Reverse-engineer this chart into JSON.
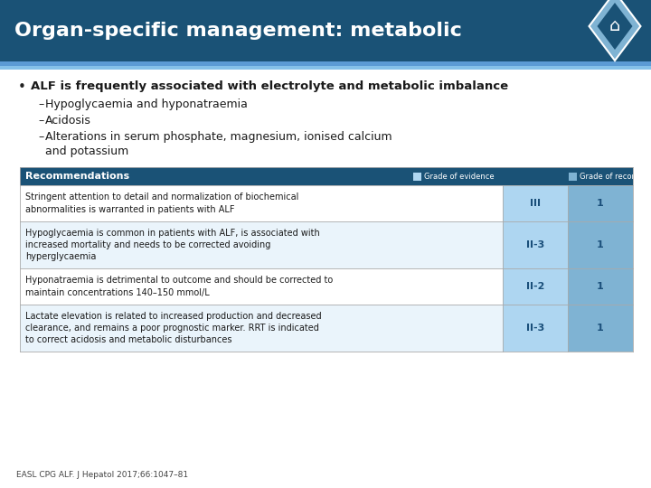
{
  "title": "Organ-specific management: metabolic",
  "title_bg": "#1a5276",
  "title_text_color": "#ffffff",
  "body_bg": "#ffffff",
  "bullet_main": "ALF is frequently associated with electrolyte and metabolic imbalance",
  "sub_bullets": [
    "Hypoglycaemia and hyponatraemia",
    "Acidosis",
    "Alterations in serum phosphate, magnesium, ionised calcium\nand potassium"
  ],
  "table_header_bg": "#1a5276",
  "table_col_evidence_bg": "#aed6f1",
  "table_col_rec_bg": "#7fb3d3",
  "table_border_color": "#aaaaaa",
  "col_evidence_label": "Grade of evidence",
  "col_rec_label": "Grade of recommendation",
  "col_evidence_indicator": "#aed6f1",
  "col_rec_indicator": "#7fb3d3",
  "recommendations": [
    {
      "text": "Stringent attention to detail and normalization of biochemical\nabnormalities is warranted in patients with ALF",
      "evidence": "III",
      "recommendation": "1"
    },
    {
      "text": "Hypoglycaemia is common in patients with ALF, is associated with\nincreased mortality and needs to be corrected avoiding\nhyperglycaemia",
      "evidence": "II-3",
      "recommendation": "1"
    },
    {
      "text": "Hyponatraemia is detrimental to outcome and should be corrected to\nmaintain concentrations 140–150 mmol/L",
      "evidence": "II-2",
      "recommendation": "1"
    },
    {
      "text": "Lactate elevation is related to increased production and decreased\nclearance, and remains a poor prognostic marker. RRT is indicated\nto correct acidosis and metabolic disturbances",
      "evidence": "II-3",
      "recommendation": "1"
    }
  ],
  "footer_text": "EASL CPG ALF. J Hepatol 2017;66:1047–81",
  "accent_line_color": "#5b9bd5",
  "light_blue_stripe": "#85c1e9",
  "icon_outer_color": "#7fb3d3",
  "icon_inner_color": "#1a5276"
}
